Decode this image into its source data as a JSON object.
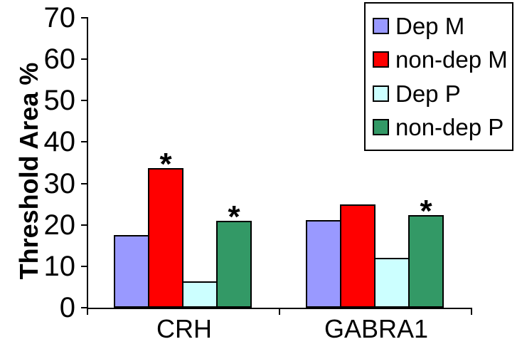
{
  "chart_data": {
    "type": "bar",
    "title": "",
    "ylabel": "Threshold Area %",
    "xlabel": "",
    "ylim": [
      0,
      70
    ],
    "yticks": [
      0,
      10,
      20,
      30,
      40,
      50,
      60,
      70
    ],
    "categories": [
      "CRH",
      "GABRA1"
    ],
    "series": [
      {
        "name": "Dep M",
        "color": "#9999FF",
        "values": [
          17.5,
          21.2
        ],
        "significant": [
          false,
          false
        ]
      },
      {
        "name": "non-dep M",
        "color": "#FF0000",
        "values": [
          33.7,
          25.0
        ],
        "significant": [
          true,
          false
        ]
      },
      {
        "name": "Dep P",
        "color": "#CCFFFF",
        "values": [
          6.3,
          12.0
        ],
        "significant": [
          false,
          false
        ]
      },
      {
        "name": "non-dep P",
        "color": "#339966",
        "values": [
          20.9,
          22.3
        ],
        "significant": [
          true,
          true
        ]
      }
    ],
    "significance_marker": "*",
    "legend_position": "top-right",
    "grid": "off",
    "axis_color": "#000000",
    "background": "#FFFFFF"
  }
}
